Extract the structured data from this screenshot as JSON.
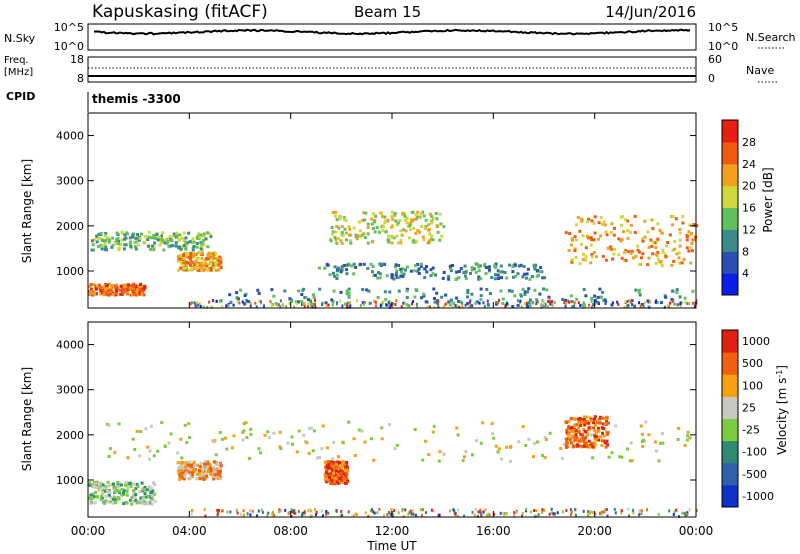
{
  "header": {
    "station": "Kapuskasing (fitACF)",
    "beam": "Beam 15",
    "date": "14/Jun/2016"
  },
  "top_panels": {
    "nsky_label": "N.Sky",
    "nsky_ticks": [
      "10^5",
      "10^0"
    ],
    "nsearch_label": "N.Search",
    "nsearch_ticks": [
      "10^5",
      "10^0"
    ],
    "freq_label_1": "Freq.",
    "freq_label_2": "[MHz]",
    "freq_ticks": [
      "18",
      "8"
    ],
    "nave_label": "Nave",
    "nave_ticks": [
      "60",
      "0"
    ],
    "cpid_label": "CPID",
    "cpid_value": "themis -3300"
  },
  "chart_data": [
    {
      "type": "heatmap",
      "name": "power",
      "ylabel": "Slant Range [km]",
      "xlabel": "Time UT",
      "ylim": [
        180,
        4500
      ],
      "yticks": [
        1000,
        2000,
        3000,
        4000
      ],
      "xticks": [
        "00:00",
        "04:00",
        "08:00",
        "12:00",
        "16:00",
        "20:00",
        "00:00"
      ],
      "colorbar_label": "Power [dB]",
      "colorbar_ticks": [
        "28",
        "24",
        "20",
        "16",
        "12",
        "8",
        "4"
      ],
      "colors": [
        "#0a1ee8",
        "#2a4fb0",
        "#3a8a8a",
        "#62c05a",
        "#cfd83a",
        "#f3a020",
        "#f05a10",
        "#e81e10"
      ],
      "features": [
        {
          "t": [
            0.0,
            2.2
          ],
          "r": [
            450,
            700
          ],
          "level": 6
        },
        {
          "t": [
            0.1,
            4.8
          ],
          "r": [
            1450,
            1850
          ],
          "level": 3
        },
        {
          "t": [
            3.5,
            5.2
          ],
          "r": [
            1000,
            1400
          ],
          "level": 5
        },
        {
          "t": [
            9.5,
            14.0
          ],
          "r": [
            1600,
            2300
          ],
          "level": 4
        },
        {
          "t": [
            9.0,
            18.0
          ],
          "r": [
            800,
            1150
          ],
          "level": 2
        },
        {
          "t": [
            5.5,
            24.0
          ],
          "r": [
            200,
            600
          ],
          "level": 2
        },
        {
          "t": [
            18.8,
            24.0
          ],
          "r": [
            1100,
            2200
          ],
          "level": 5
        }
      ]
    },
    {
      "type": "heatmap",
      "name": "velocity",
      "ylabel": "Slant Range [km]",
      "xlabel": "Time UT",
      "ylim": [
        180,
        4500
      ],
      "yticks": [
        1000,
        2000,
        3000,
        4000
      ],
      "xticks": [
        "00:00",
        "04:00",
        "08:00",
        "12:00",
        "16:00",
        "20:00",
        "00:00"
      ],
      "colorbar_label": "Velocity [m s^-1]",
      "colorbar_ticks": [
        "1000",
        "500",
        "100",
        "25",
        "-25",
        "-100",
        "-500",
        "-1000"
      ],
      "colors": [
        "#1030c8",
        "#2f60b0",
        "#2e8a70",
        "#7ccc40",
        "#c8c8c0",
        "#f4a010",
        "#f06010",
        "#e02010"
      ],
      "features": [
        {
          "t": [
            0.0,
            2.6
          ],
          "r": [
            450,
            950
          ],
          "level": 3
        },
        {
          "t": [
            3.5,
            5.2
          ],
          "r": [
            1000,
            1400
          ],
          "level": 5
        },
        {
          "t": [
            9.3,
            10.2
          ],
          "r": [
            900,
            1400
          ],
          "level": 6
        },
        {
          "t": [
            0.1,
            24.0
          ],
          "r": [
            1400,
            2300
          ],
          "level": 4
        },
        {
          "t": [
            18.8,
            20.5
          ],
          "r": [
            1700,
            2400
          ],
          "level": 6
        }
      ]
    }
  ]
}
